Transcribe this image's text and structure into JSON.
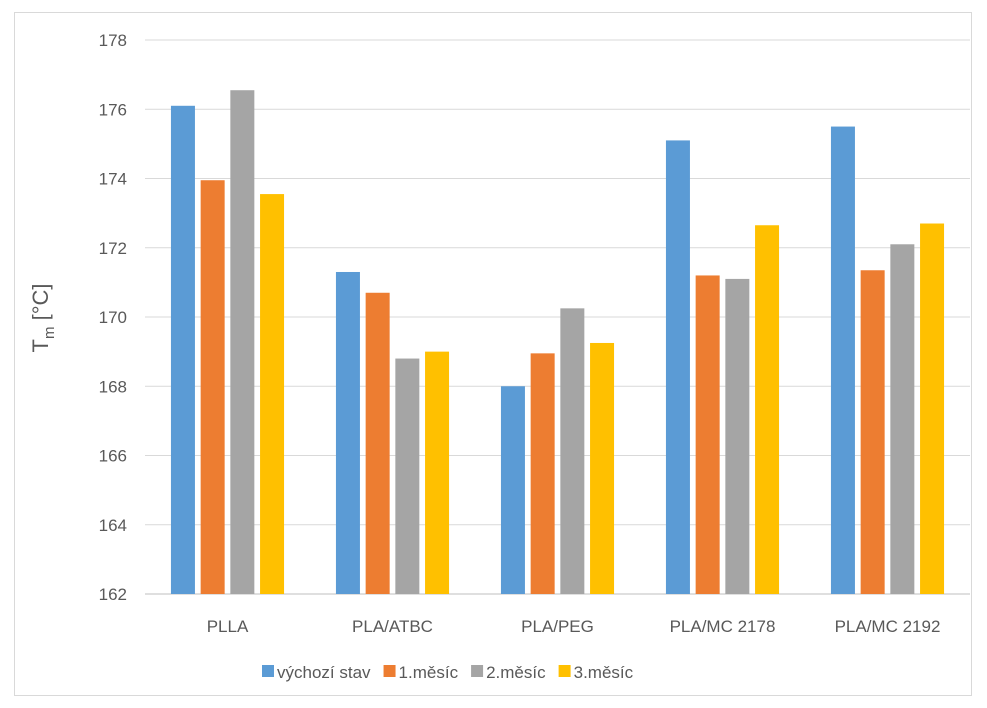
{
  "chart_data": {
    "type": "bar",
    "title": "",
    "xlabel": "",
    "ylabel_main": "T",
    "ylabel_sub": "m",
    "ylabel_unit": " [°C]",
    "ylim": [
      162,
      178
    ],
    "ytick_step": 2,
    "grid": true,
    "legend_position": "bottom",
    "categories": [
      "PLLA",
      "PLA/ATBC",
      "PLA/PEG",
      "PLA/MC 2178",
      "PLA/MC 2192"
    ],
    "series": [
      {
        "name": "výchozí stav",
        "color": "#5B9BD5",
        "values": [
          176.1,
          171.3,
          168.0,
          175.1,
          175.5
        ]
      },
      {
        "name": "1.měsíc",
        "color": "#ED7D31",
        "values": [
          173.95,
          170.7,
          168.95,
          171.2,
          171.35
        ]
      },
      {
        "name": "2.měsíc",
        "color": "#A5A5A5",
        "values": [
          176.55,
          168.8,
          170.25,
          171.1,
          172.1
        ]
      },
      {
        "name": "3.měsíc",
        "color": "#FFC000",
        "values": [
          173.55,
          169.0,
          169.25,
          172.65,
          172.7
        ]
      }
    ]
  }
}
